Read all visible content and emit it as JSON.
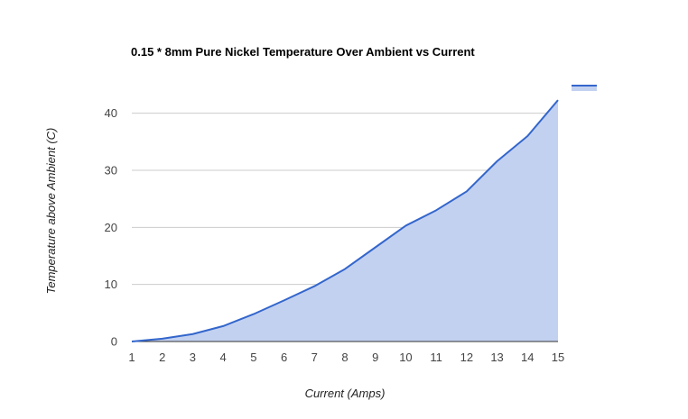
{
  "chart_data": {
    "type": "area",
    "title": "0.15 * 8mm Pure Nickel Temperature Over Ambient vs Current",
    "xlabel": "Current (Amps)",
    "ylabel": "Temperature above Ambient (C)",
    "x": [
      1,
      2,
      3,
      4,
      5,
      6,
      7,
      8,
      9,
      10,
      11,
      12,
      13,
      14,
      15
    ],
    "series": [
      {
        "name": "",
        "values": [
          0,
          0.5,
          1.3,
          2.7,
          4.8,
          7.2,
          9.7,
          12.7,
          16.5,
          20.3,
          23.0,
          26.3,
          31.6,
          36.0,
          42.3
        ],
        "color": "#3366cc",
        "fill": "#c3d1f0"
      }
    ],
    "xlim": [
      1,
      15
    ],
    "ylim": [
      0,
      45
    ],
    "yticks": [
      0,
      10,
      20,
      30,
      40
    ],
    "grid": true,
    "legend_position": "right"
  }
}
